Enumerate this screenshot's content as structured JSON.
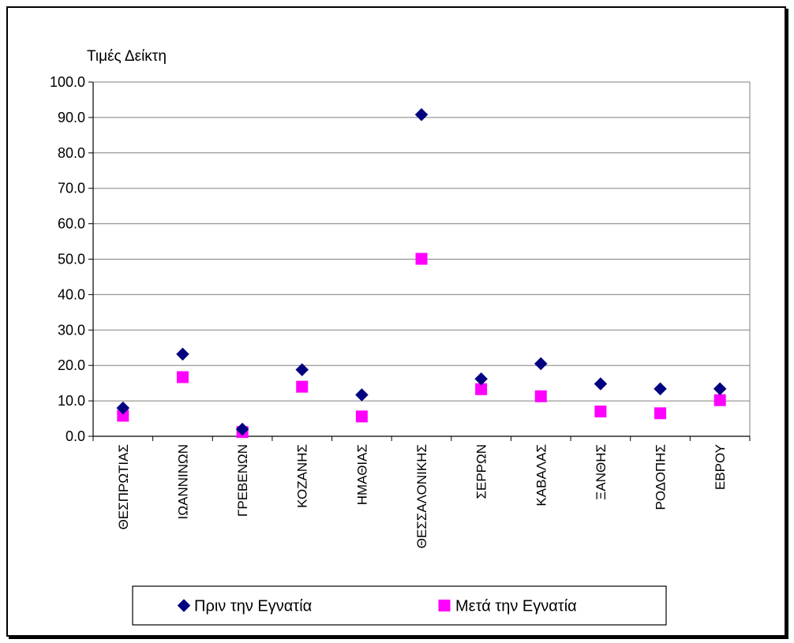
{
  "chart_data": {
    "type": "scatter",
    "title": "",
    "xlabel": "",
    "ylabel": "Τιμές Δείκτη",
    "ylim": [
      0,
      100
    ],
    "ytick_step": 10,
    "ytick_labels": [
      "0.0",
      "10.0",
      "20.0",
      "30.0",
      "40.0",
      "50.0",
      "60.0",
      "70.0",
      "80.0",
      "90.0",
      "100.0"
    ],
    "grid": true,
    "legend_position": "bottom",
    "categories": [
      "ΘΕΣΠΡΩΤΙΑΣ",
      "ΙΩΑΝΝΙΝΩΝ",
      "ΓΡΕΒΕΝΩΝ",
      "ΚΟΖΑΝΗΣ",
      "ΗΜΑΘΙΑΣ",
      "ΘΕΣΣΑΛΟΝΙΚΗΣ",
      "ΣΕΡΡΩΝ",
      "ΚΑΒΑΛΑΣ",
      "ΞΑΝΘΗΣ",
      "ΡΟΔΟΠΗΣ",
      "ΕΒΡΟΥ"
    ],
    "series": [
      {
        "name": "Πριν την Εγνατία",
        "marker": "diamond",
        "color": "#000080",
        "values": [
          8.0,
          23.2,
          2.0,
          18.8,
          11.7,
          90.8,
          16.2,
          20.5,
          14.8,
          13.4,
          13.4
        ]
      },
      {
        "name": "Μετά την Εγνατία",
        "marker": "square",
        "color": "#FF00FF",
        "values": [
          5.8,
          16.7,
          1.2,
          14.0,
          5.6,
          50.1,
          13.3,
          11.3,
          7.0,
          6.5,
          10.2
        ]
      }
    ]
  }
}
